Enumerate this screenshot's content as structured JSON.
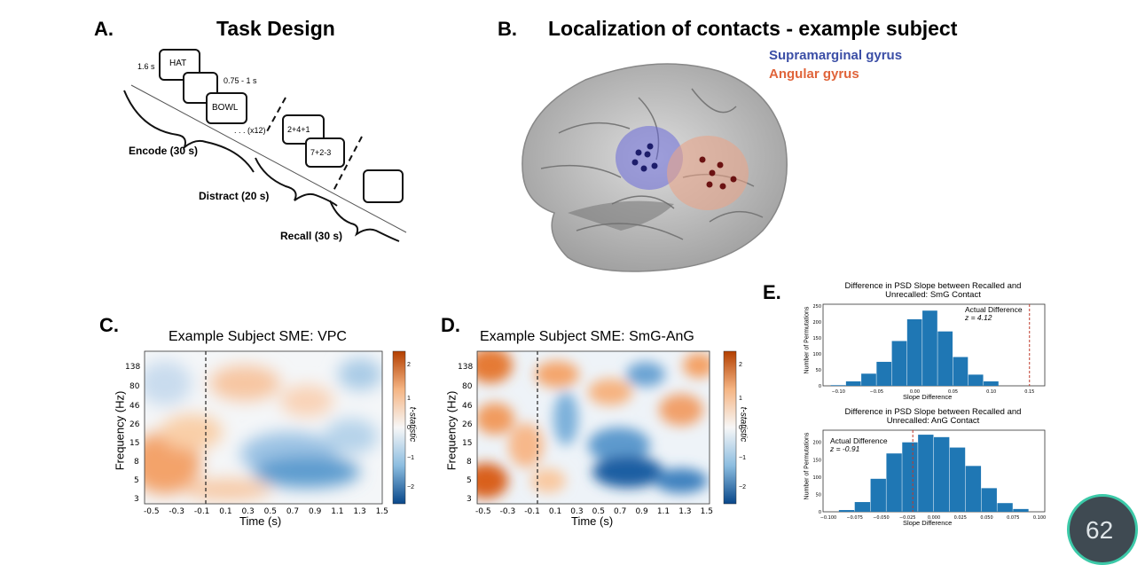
{
  "panelA": {
    "letter": "A.",
    "title": "Task Design",
    "time_pres": "1.6 s",
    "word1": "HAT",
    "isi": "0.75 - 1 s",
    "word2": "BOWL",
    "repeat": ". . . (x12)",
    "math1": "2+4+1",
    "math2": "7+2-3",
    "encode": "Encode (30 s)",
    "distract": "Distract (20 s)",
    "recall": "Recall (30 s)"
  },
  "panelB": {
    "letter": "B.",
    "title": "Localization of contacts - example subject",
    "legend_smg": "Supramarginal gyrus",
    "legend_ang": "Angular gyrus",
    "smg_color": "#3b4ea6",
    "ang_color": "#e0643a"
  },
  "panelC": {
    "letter": "C.",
    "title": "Example Subject SME: VPC",
    "ylabel": "Frequency (Hz)",
    "xlabel": "Time (s)",
    "cbar_label": "t-statistic"
  },
  "panelD": {
    "letter": "D.",
    "title": "Example Subject SME: SmG-AnG",
    "ylabel": "Frequency (Hz)",
    "xlabel": "Time (s)",
    "cbar_label": "t-statistic"
  },
  "panelE": {
    "letter": "E."
  },
  "overlay": {
    "badge": "62"
  },
  "chart_data": [
    {
      "type": "heatmap",
      "title": "Example Subject SME: VPC",
      "xlabel": "Time (s)",
      "ylabel": "Frequency (Hz)",
      "x_ticks": [
        "-0.5",
        "-0.3",
        "-0.1",
        "0.1",
        "0.3",
        "0.5",
        "0.7",
        "0.9",
        "1.1",
        "1.3",
        "1.5"
      ],
      "y_ticks": [
        "3",
        "5",
        "8",
        "15",
        "26",
        "46",
        "80",
        "138"
      ],
      "colorbar_label": "t-statistic",
      "colorbar_ticks": [
        "2",
        "1",
        "0",
        "−1",
        "−2"
      ],
      "stimulus_onset": 0
    },
    {
      "type": "heatmap",
      "title": "Example Subject SME: SmG-AnG",
      "xlabel": "Time (s)",
      "ylabel": "Frequency (Hz)",
      "x_ticks": [
        "-0.5",
        "-0.3",
        "-0.1",
        "0.1",
        "0.3",
        "0.5",
        "0.7",
        "0.9",
        "1.1",
        "1.3",
        "1.5"
      ],
      "y_ticks": [
        "3",
        "5",
        "8",
        "15",
        "26",
        "46",
        "80",
        "138"
      ],
      "colorbar_label": "t-statistic",
      "colorbar_ticks": [
        "2",
        "1",
        "0",
        "−1",
        "−2"
      ],
      "stimulus_onset": 0
    },
    {
      "type": "bar",
      "title": "Difference in PSD Slope between Recalled and Unrecalled: SmG Contact",
      "xlabel": "Slope Difference",
      "ylabel": "Number of Permutations",
      "x_ticks": [
        "−0.10",
        "−0.05",
        "0.00",
        "0.05",
        "0.10",
        "0.15"
      ],
      "y_ticks": [
        "0",
        "50",
        "100",
        "150",
        "200",
        "250"
      ],
      "xlim": [
        -0.12,
        0.17
      ],
      "ylim": [
        0,
        255
      ],
      "bin_edges": [
        -0.11,
        -0.09,
        -0.07,
        -0.05,
        -0.03,
        -0.01,
        0.01,
        0.03,
        0.05,
        0.07,
        0.09,
        0.11
      ],
      "values": [
        2,
        14,
        38,
        75,
        140,
        208,
        235,
        170,
        90,
        35,
        14
      ],
      "annotation": "Actual Difference",
      "stat": "z = 4.12",
      "actual_value": 0.15
    },
    {
      "type": "bar",
      "title": "Difference in PSD Slope between Recalled and Unrecalled: AnG Contact",
      "xlabel": "Slope Difference",
      "ylabel": "Number of Permutations",
      "x_ticks": [
        "−0.100",
        "−0.075",
        "−0.050",
        "−0.025",
        "0.000",
        "0.025",
        "0.050",
        "0.075",
        "0.100"
      ],
      "y_ticks": [
        "0",
        "50",
        "100",
        "150",
        "200"
      ],
      "xlim": [
        -0.105,
        0.105
      ],
      "ylim": [
        0,
        235
      ],
      "bin_edges": [
        -0.09,
        -0.075,
        -0.06,
        -0.045,
        -0.03,
        -0.015,
        0.0,
        0.015,
        0.03,
        0.045,
        0.06,
        0.075,
        0.09
      ],
      "values": [
        5,
        28,
        95,
        168,
        200,
        222,
        215,
        185,
        132,
        68,
        25,
        8
      ],
      "annotation": "Actual Difference",
      "stat": "z = -0.91",
      "actual_value": -0.02
    }
  ]
}
